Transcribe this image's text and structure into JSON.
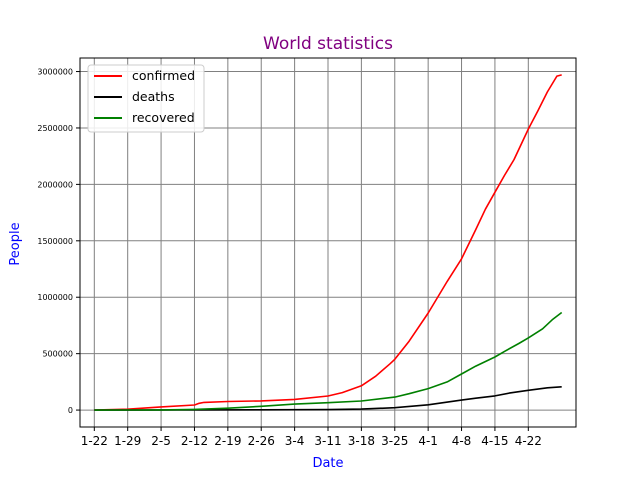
{
  "chart_data": {
    "type": "line",
    "title": "World statistics",
    "xlabel": "Date",
    "ylabel": "People",
    "colors": {
      "title": "#800080",
      "axis_labels": "#0000ff",
      "grid": "#808080"
    },
    "grid": true,
    "legend_position": "top-left",
    "x_ticks": [
      {
        "day": 0,
        "label": "1-22"
      },
      {
        "day": 7,
        "label": "1-29"
      },
      {
        "day": 14,
        "label": "2-5"
      },
      {
        "day": 21,
        "label": "2-12"
      },
      {
        "day": 28,
        "label": "2-19"
      },
      {
        "day": 35,
        "label": "2-26"
      },
      {
        "day": 42,
        "label": "3-4"
      },
      {
        "day": 49,
        "label": "3-11"
      },
      {
        "day": 56,
        "label": "3-18"
      },
      {
        "day": 63,
        "label": "3-25"
      },
      {
        "day": 70,
        "label": "4-1"
      },
      {
        "day": 77,
        "label": "4-8"
      },
      {
        "day": 84,
        "label": "4-15"
      },
      {
        "day": 91,
        "label": "4-22"
      }
    ],
    "y_ticks": [
      0,
      500000,
      1000000,
      1500000,
      2000000,
      2500000,
      3000000
    ],
    "xlim": [
      -3,
      101
    ],
    "ylim": [
      -150000,
      3120000
    ],
    "series": [
      {
        "name": "confirmed",
        "color": "#ff0000",
        "points": [
          [
            0,
            555
          ],
          [
            7,
            7800
          ],
          [
            14,
            28000
          ],
          [
            21,
            45000
          ],
          [
            22,
            60000
          ],
          [
            23,
            68000
          ],
          [
            28,
            76000
          ],
          [
            35,
            81000
          ],
          [
            42,
            95000
          ],
          [
            49,
            125000
          ],
          [
            52,
            155000
          ],
          [
            56,
            215000
          ],
          [
            59,
            300000
          ],
          [
            62,
            410000
          ],
          [
            63,
            450000
          ],
          [
            66,
            610000
          ],
          [
            70,
            860000
          ],
          [
            74,
            1140000
          ],
          [
            77,
            1340000
          ],
          [
            80,
            1600000
          ],
          [
            82,
            1780000
          ],
          [
            84,
            1930000
          ],
          [
            86,
            2080000
          ],
          [
            88,
            2220000
          ],
          [
            91,
            2490000
          ],
          [
            93,
            2650000
          ],
          [
            95,
            2820000
          ],
          [
            97,
            2960000
          ],
          [
            98,
            2970000
          ]
        ]
      },
      {
        "name": "deaths",
        "color": "#000000",
        "points": [
          [
            0,
            17
          ],
          [
            21,
            1100
          ],
          [
            35,
            2800
          ],
          [
            49,
            4600
          ],
          [
            56,
            9000
          ],
          [
            63,
            21000
          ],
          [
            70,
            47000
          ],
          [
            77,
            88000
          ],
          [
            80,
            105000
          ],
          [
            84,
            126000
          ],
          [
            87,
            150000
          ],
          [
            91,
            175000
          ],
          [
            95,
            197000
          ],
          [
            98,
            206000
          ]
        ]
      },
      {
        "name": "recovered",
        "color": "#008000",
        "points": [
          [
            0,
            28
          ],
          [
            14,
            1500
          ],
          [
            21,
            6000
          ],
          [
            28,
            17000
          ],
          [
            35,
            33000
          ],
          [
            42,
            53000
          ],
          [
            49,
            65000
          ],
          [
            56,
            80000
          ],
          [
            63,
            115000
          ],
          [
            66,
            145000
          ],
          [
            70,
            190000
          ],
          [
            74,
            250000
          ],
          [
            77,
            320000
          ],
          [
            80,
            390000
          ],
          [
            84,
            470000
          ],
          [
            86,
            520000
          ],
          [
            89,
            590000
          ],
          [
            91,
            640000
          ],
          [
            94,
            720000
          ],
          [
            96,
            800000
          ],
          [
            98,
            865000
          ]
        ]
      }
    ]
  }
}
